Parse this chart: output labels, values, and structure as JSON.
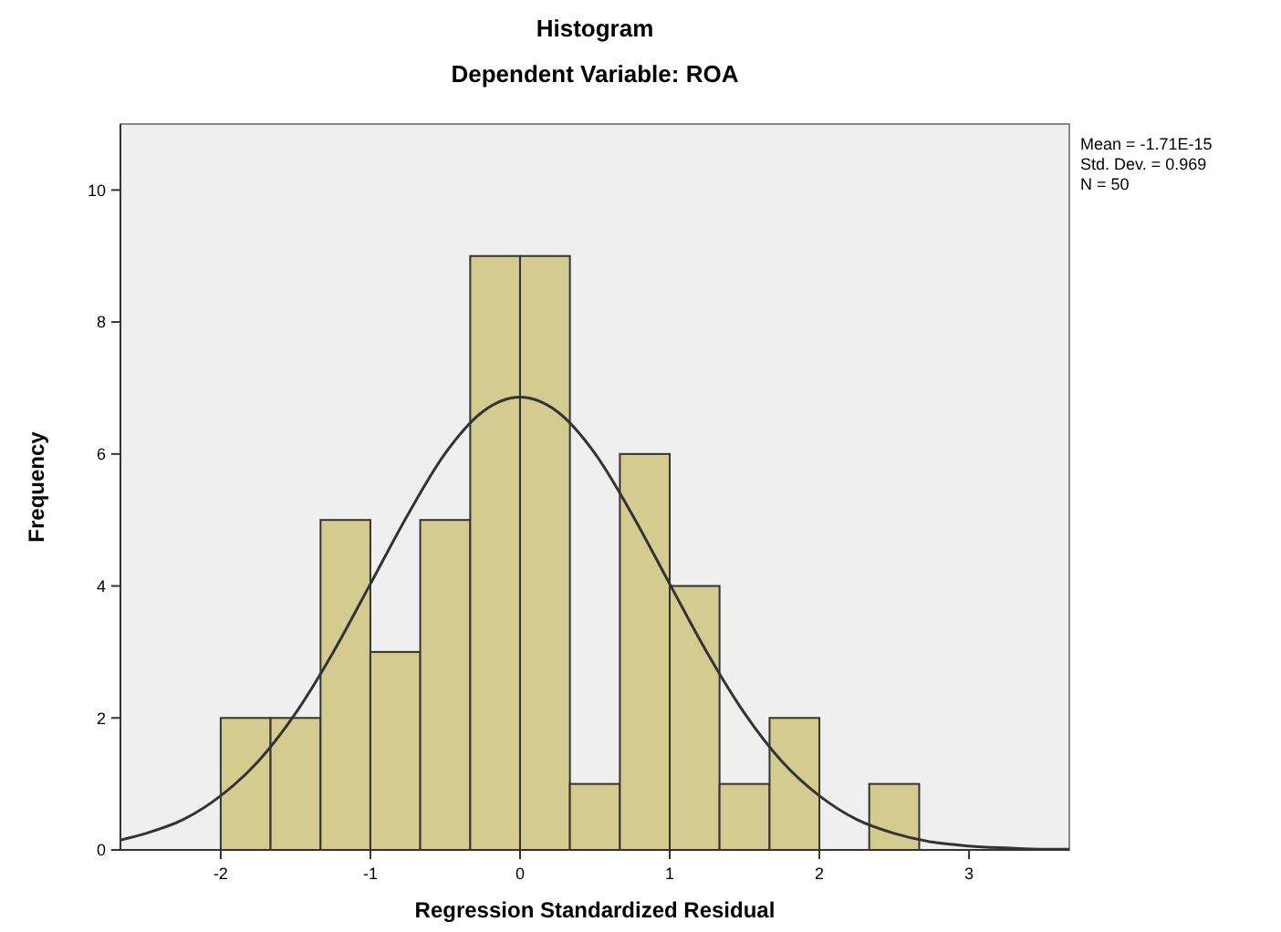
{
  "chart_data": {
    "type": "histogram",
    "title": "Histogram",
    "subtitle": "Dependent Variable: ROA",
    "xlabel": "Regression Standardized Residual",
    "ylabel": "Frequency",
    "bins": [
      -2,
      -1.667,
      -1.333,
      -1,
      -0.667,
      -0.333,
      0,
      0.333,
      0.667,
      1,
      1.333,
      1.667,
      2,
      2.333,
      2.667
    ],
    "values": [
      2,
      2,
      5,
      3,
      5,
      9,
      9,
      1,
      6,
      4,
      1,
      2,
      0,
      1
    ],
    "color": "#d3cb8f",
    "series": [
      {
        "type": "line",
        "color": "#333333",
        "x": [
          -2.67,
          -2.5,
          -2.25,
          -2,
          -1.75,
          -1.5,
          -1.25,
          -1,
          -0.75,
          -0.5,
          -0.25,
          0,
          0.25,
          0.5,
          0.75,
          1,
          1.25,
          1.5,
          1.75,
          2,
          2.25,
          2.5,
          2.75,
          3,
          3.25,
          3.5,
          3.67
        ],
        "values": [
          0.15,
          0.25,
          0.46,
          0.82,
          1.34,
          2.07,
          2.99,
          4.03,
          5.08,
          6.01,
          6.64,
          6.86,
          6.64,
          6.01,
          5.08,
          4.03,
          2.99,
          2.07,
          1.34,
          0.82,
          0.46,
          0.25,
          0.12,
          0.06,
          0.03,
          0.01,
          0.01
        ]
      }
    ],
    "xlim": [
      -2.67,
      3.67
    ],
    "ylim": [
      0,
      11
    ],
    "xticks": [
      -2,
      -1,
      0,
      1,
      2,
      3
    ],
    "yticks": [
      0,
      2,
      4,
      6,
      8,
      10
    ],
    "grid": false,
    "annotations": [
      "Mean = -1.71E-15",
      "Std. Dev. = 0.969",
      "N = 50"
    ]
  }
}
